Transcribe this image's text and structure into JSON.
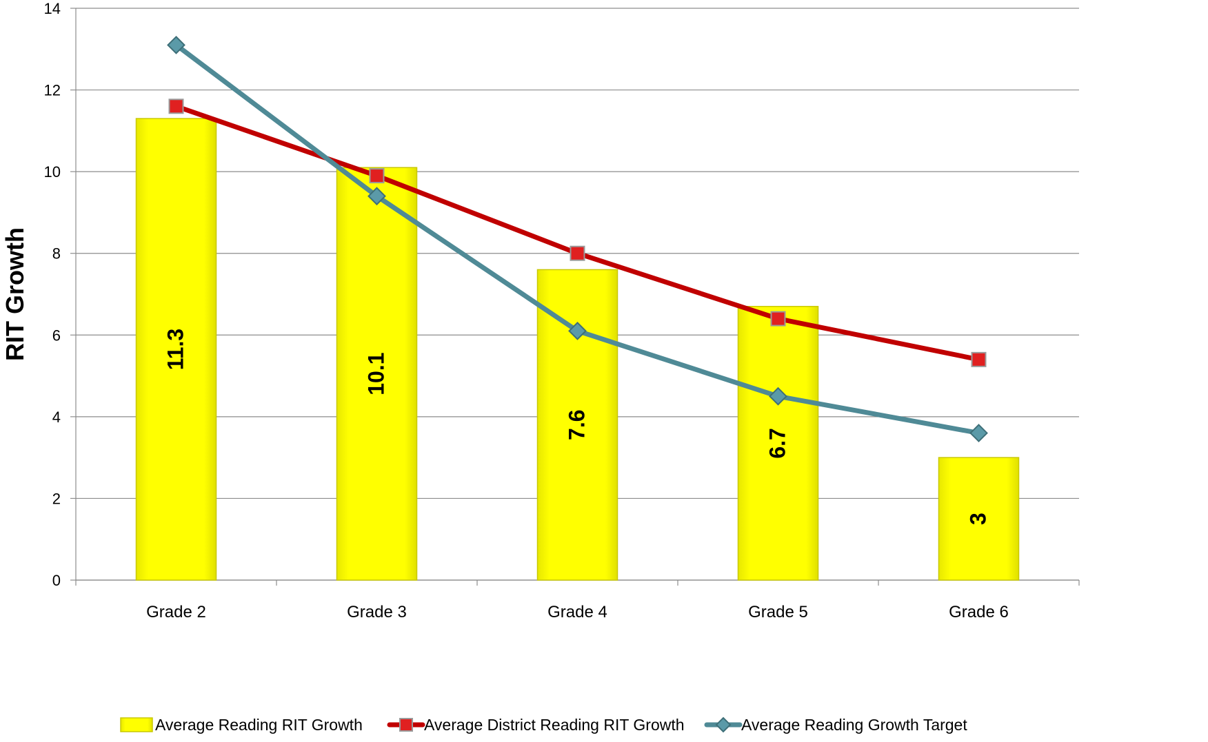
{
  "chart_data": {
    "type": "bar",
    "title": "",
    "xlabel": "",
    "ylabel": "RIT Growth",
    "ylim": [
      0,
      14
    ],
    "ytick_step": 2,
    "grid": true,
    "legend_position": "bottom",
    "categories": [
      "Grade 2",
      "Grade 3",
      "Grade 4",
      "Grade 5",
      "Grade 6"
    ],
    "series": [
      {
        "name": "Average Reading RIT Growth",
        "kind": "bar",
        "values": [
          11.3,
          10.1,
          7.6,
          6.7,
          3
        ],
        "color": "#FFFF00",
        "data_labels": [
          "11.3",
          "10.1",
          "7.6",
          "6.7",
          "3"
        ]
      },
      {
        "name": "Average District Reading RIT Growth",
        "kind": "line",
        "marker": "square",
        "values": [
          11.6,
          9.9,
          8.0,
          6.4,
          5.4
        ],
        "color": "#C00000",
        "marker_color": "#E02020"
      },
      {
        "name": "Average Reading Growth Target",
        "kind": "line",
        "marker": "diamond",
        "values": [
          13.1,
          9.4,
          6.1,
          4.5,
          3.6
        ],
        "color": "#4F8A96",
        "marker_color": "#5B9AA8"
      }
    ]
  }
}
